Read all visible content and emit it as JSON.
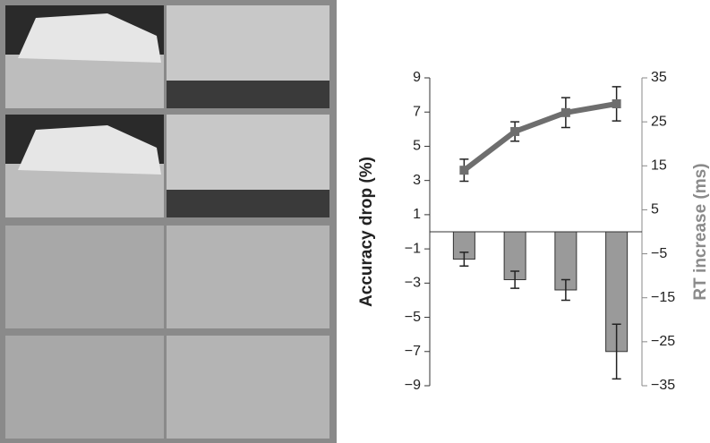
{
  "chart_data": {
    "type": "bar-line",
    "categories": [
      null,
      null,
      null,
      null
    ],
    "ylabel": "Accuracy drop (%)",
    "y2label": "RT increase (ms)",
    "ylim": [
      -9,
      9
    ],
    "yticks": [
      {
        "value": -9,
        "label": "−9"
      },
      {
        "value": -7,
        "label": "−7"
      },
      {
        "value": -5,
        "label": "−5"
      },
      {
        "value": -3,
        "label": "−3"
      },
      {
        "value": -1,
        "label": "−1"
      },
      1,
      3,
      5,
      7,
      9
    ],
    "y2lim": [
      -35,
      35
    ],
    "y2ticks": [
      {
        "value": -35,
        "label": "−35"
      },
      {
        "value": -25,
        "label": "−25"
      },
      {
        "value": -15,
        "label": "−15"
      },
      {
        "value": -5,
        "label": "−5"
      },
      5,
      15,
      25,
      35
    ],
    "series": [
      {
        "type": "bar",
        "color": "#9a9a9a",
        "values": [
          -1.6,
          -2.8,
          -3.4,
          -7.0
        ],
        "error": [
          0.4,
          0.5,
          0.6,
          1.6
        ]
      },
      {
        "type": "line",
        "axis": "y2",
        "color": "#6e6e6e",
        "values": [
          14.0,
          22.8,
          27.1,
          29.1
        ],
        "error": [
          2.5,
          2.2,
          3.4,
          3.9
        ]
      }
    ]
  }
}
